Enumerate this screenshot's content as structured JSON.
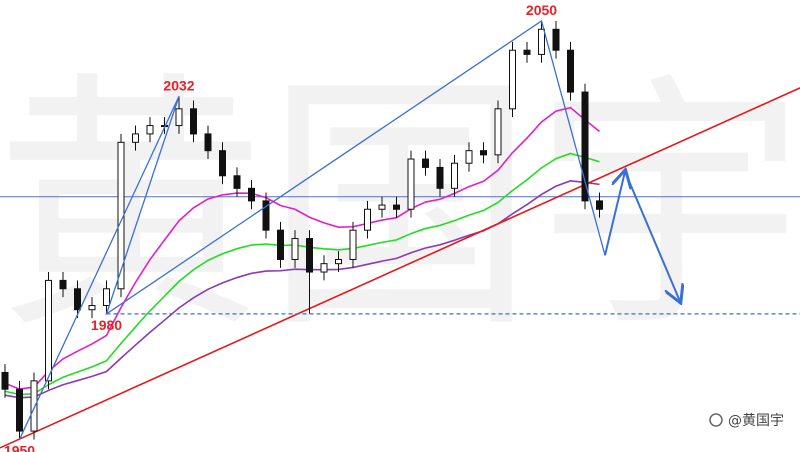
{
  "chart_data": {
    "type": "candlestick",
    "watermark": "黄国宇",
    "credit": "@黄国宇",
    "ylim": [
      1947,
      2055
    ],
    "open": [
      1966,
      1962,
      1952,
      1964,
      1988,
      1986,
      1981,
      1982,
      1986,
      2021,
      2023,
      2025,
      2025,
      2029,
      2023,
      2019,
      2013,
      2010,
      2007,
      2000,
      1993,
      1998,
      1990,
      1992,
      1993,
      2000,
      2005,
      2006,
      2005,
      2017,
      2015,
      2010,
      2016,
      2019,
      2018,
      2029,
      2043,
      2042,
      2048,
      2043,
      2033,
      2007
    ],
    "high": [
      1968,
      1964,
      1966,
      1990,
      1990,
      1988,
      1984,
      1988,
      2023,
      2025,
      2027,
      2027,
      2032,
      2031,
      2025,
      2021,
      2015,
      2012,
      2009,
      2002,
      2000,
      2000,
      1994,
      1995,
      2002,
      2007,
      2008,
      2008,
      2019,
      2019,
      2017,
      2018,
      2021,
      2021,
      2031,
      2045,
      2045,
      2050,
      2050,
      2045,
      2035,
      2009
    ],
    "low": [
      1960,
      1950,
      1950,
      1962,
      1984,
      1979,
      1979,
      1980,
      1984,
      2019,
      2021,
      2023,
      2023,
      2021,
      2017,
      2011,
      2008,
      2005,
      1998,
      1991,
      1991,
      1980,
      1988,
      1990,
      1991,
      1998,
      2003,
      2003,
      2003,
      2013,
      2008,
      2008,
      2014,
      2016,
      2016,
      2027,
      2040,
      2040,
      2041,
      2031,
      2005,
      2003
    ],
    "close": [
      1962,
      1952,
      1964,
      1988,
      1986,
      1981,
      1982,
      1986,
      2021,
      2023,
      2025,
      2025,
      2029,
      2023,
      2019,
      2013,
      2010,
      2007,
      2000,
      1993,
      1998,
      1990,
      1992,
      1993,
      2000,
      2005,
      2006,
      2005,
      2017,
      2015,
      2010,
      2016,
      2019,
      2018,
      2029,
      2043,
      2042,
      2048,
      2043,
      2033,
      2007,
      2005
    ],
    "price_labels": [
      1950,
      2032,
      1980,
      2050
    ],
    "trendline": [
      1948,
      2034
    ],
    "horizontal_level": 2008,
    "support_level": 1980,
    "forecast": [
      1994,
      2014,
      1983
    ]
  }
}
